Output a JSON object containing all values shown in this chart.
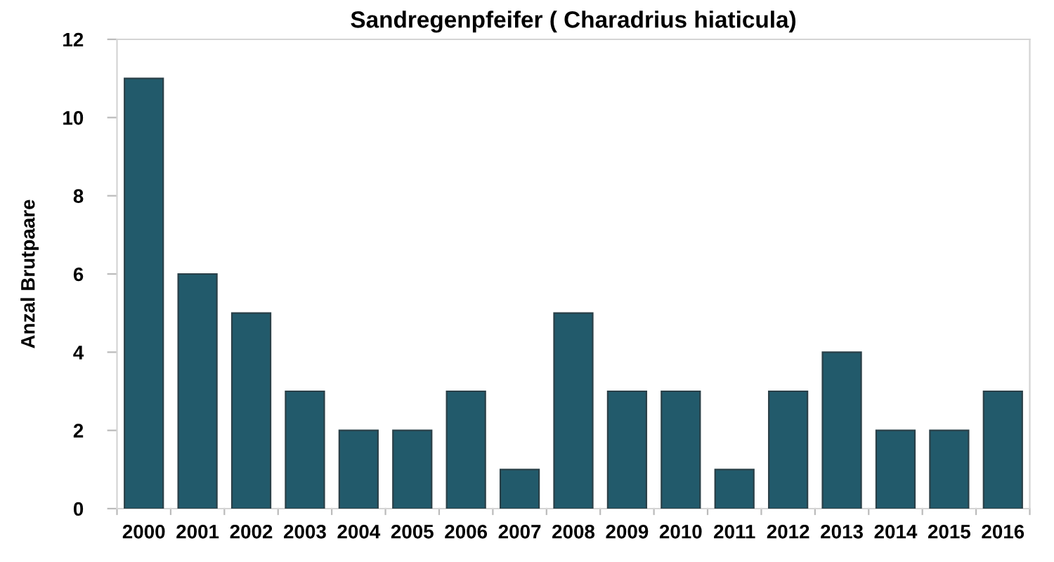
{
  "chart_data": {
    "type": "bar",
    "title": "Sandregenpfeifer ( Charadrius hiaticula)",
    "ylabel": "Anzal Brutpaare",
    "categories": [
      "2000",
      "2001",
      "2002",
      "2003",
      "2004",
      "2005",
      "2006",
      "2007",
      "2008",
      "2009",
      "2010",
      "2011",
      "2012",
      "2013",
      "2014",
      "2015",
      "2016"
    ],
    "values": [
      11,
      6,
      5,
      3,
      2,
      2,
      3,
      1,
      5,
      3,
      3,
      1,
      3,
      4,
      2,
      2,
      3
    ],
    "color": "#225a6b",
    "ylim": [
      0,
      12
    ],
    "yticks": [
      0,
      2,
      4,
      6,
      8,
      10,
      12
    ],
    "grid": false
  }
}
